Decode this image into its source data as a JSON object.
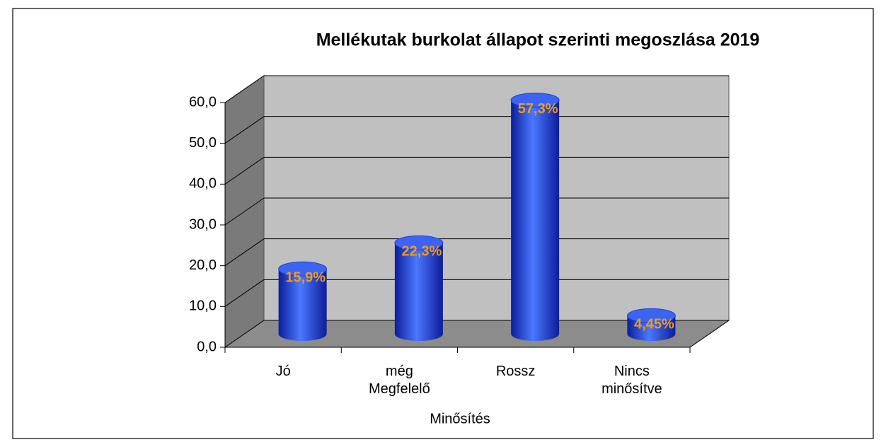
{
  "chart_data": {
    "type": "bar3d",
    "title": "Mellékutak burkolat állapot szerinti megoszlása 2019",
    "x_label": "Minősítés",
    "categories": [
      "Jó",
      "még Megfelelő",
      "Rossz",
      "Nincs minősítve"
    ],
    "values": [
      15.9,
      22.3,
      57.3,
      4.45
    ],
    "value_labels": [
      "15,9%",
      "22,3%",
      "57,3%",
      "4,45%"
    ],
    "color": "#2a4ef0",
    "ylim": [
      0,
      60
    ],
    "yticks": [
      {
        "value": 0,
        "label": "0,0"
      },
      {
        "value": 10,
        "label": "10,0"
      },
      {
        "value": 20,
        "label": "20,0"
      },
      {
        "value": 30,
        "label": "30,0"
      },
      {
        "value": 40,
        "label": "40,0"
      },
      {
        "value": 50,
        "label": "50,0"
      },
      {
        "value": 60,
        "label": "60,0"
      }
    ],
    "grid": true
  }
}
